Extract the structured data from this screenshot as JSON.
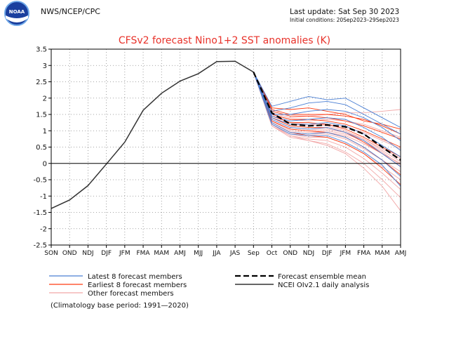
{
  "header": {
    "agency": "NWS/NCEP/CPC",
    "last_update": "Last update: Sat Sep 30 2023",
    "initial_conditions": "Initial conditions: 20Sep2023–29Sep2023",
    "logo_text": "NOAA"
  },
  "chart_data": {
    "type": "line",
    "title": "CFSv2 forecast Nino1+2 SST anomalies (K)",
    "xlabel": "",
    "ylabel": "",
    "ylim": [
      -2.5,
      3.5
    ],
    "yticks": [
      -2.5,
      -2,
      -1.5,
      -1,
      -0.5,
      0,
      0.5,
      1,
      1.5,
      2,
      2.5,
      3,
      3.5
    ],
    "ytick_labels": [
      "-2.5",
      "-2",
      "-1.5",
      "-1",
      "-0.5",
      "0",
      "0.5",
      "1",
      "1.5",
      "2",
      "2.5",
      "3",
      "3.5"
    ],
    "categories": [
      "SON",
      "OND",
      "NDJ",
      "DJF",
      "JFM",
      "FMA",
      "MAM",
      "AMJ",
      "MJJ",
      "JJA",
      "JAS",
      "Sep",
      "Oct",
      "OND",
      "NDJ",
      "DJF",
      "JFM",
      "FMA",
      "MAM",
      "AMJ"
    ],
    "grid": true,
    "observed": {
      "name": "NCEI OIv2.1 daily analysis",
      "color": "#333333",
      "values": [
        -1.38,
        -1.12,
        -0.68,
        -0.02,
        0.65,
        1.63,
        2.15,
        2.52,
        2.75,
        3.12,
        3.13,
        2.8
      ]
    },
    "ensemble_mean": {
      "name": "Forecast ensemble mean",
      "color": "#000000",
      "values": [
        2.8,
        1.55,
        1.2,
        1.15,
        1.18,
        1.12,
        0.9,
        0.5,
        0.1
      ]
    },
    "latest_members": {
      "name": "Latest 8 forecast members",
      "color": "#4a7fd4",
      "series": [
        {
          "values": [
            2.8,
            1.75,
            1.9,
            2.05,
            1.95,
            2.0,
            1.7,
            1.4,
            1.1
          ]
        },
        {
          "values": [
            2.8,
            1.6,
            1.7,
            1.85,
            1.9,
            1.8,
            1.5,
            1.2,
            0.9
          ]
        },
        {
          "values": [
            2.8,
            1.5,
            1.5,
            1.6,
            1.65,
            1.6,
            1.4,
            1.1,
            0.7
          ]
        },
        {
          "values": [
            2.8,
            1.45,
            1.3,
            1.35,
            1.4,
            1.35,
            1.1,
            0.8,
            0.4
          ]
        },
        {
          "values": [
            2.8,
            1.4,
            1.2,
            1.2,
            1.25,
            1.15,
            0.9,
            0.55,
            0.2
          ]
        },
        {
          "values": [
            2.8,
            1.35,
            1.1,
            1.05,
            1.1,
            0.95,
            0.7,
            0.3,
            -0.1
          ]
        },
        {
          "values": [
            2.8,
            1.25,
            0.95,
            0.9,
            0.95,
            0.8,
            0.5,
            0.1,
            -0.4
          ]
        },
        {
          "values": [
            2.8,
            1.2,
            0.9,
            0.85,
            0.85,
            0.65,
            0.35,
            -0.05,
            -0.7
          ]
        }
      ]
    },
    "earliest_members": {
      "name": "Earliest 8 forecast members",
      "color": "#ff3a10",
      "series": [
        {
          "values": [
            2.8,
            1.7,
            1.65,
            1.7,
            1.6,
            1.5,
            1.3,
            1.2,
            1.05
          ]
        },
        {
          "values": [
            2.8,
            1.65,
            1.5,
            1.5,
            1.5,
            1.45,
            1.35,
            1.15,
            0.9
          ]
        },
        {
          "values": [
            2.8,
            1.6,
            1.45,
            1.45,
            1.4,
            1.3,
            1.15,
            0.95,
            0.75
          ]
        },
        {
          "values": [
            2.8,
            1.5,
            1.35,
            1.35,
            1.3,
            1.2,
            1.0,
            0.75,
            0.5
          ]
        },
        {
          "values": [
            2.8,
            1.45,
            1.25,
            1.25,
            1.2,
            1.05,
            0.8,
            0.5,
            0.2
          ]
        },
        {
          "values": [
            2.8,
            1.4,
            1.15,
            1.1,
            1.1,
            0.95,
            0.65,
            0.3,
            -0.1
          ]
        },
        {
          "values": [
            2.8,
            1.3,
            1.05,
            1.0,
            0.95,
            0.8,
            0.5,
            0.1,
            -0.35
          ]
        },
        {
          "values": [
            2.8,
            1.25,
            0.95,
            0.85,
            0.8,
            0.6,
            0.3,
            -0.15,
            -0.65
          ]
        }
      ]
    },
    "other_members": {
      "name": "Other forecast members",
      "color": "#f2a8a8",
      "series": [
        {
          "values": [
            2.8,
            1.55,
            1.4,
            1.45,
            1.5,
            1.55,
            1.55,
            1.6,
            1.65
          ]
        },
        {
          "values": [
            2.8,
            1.5,
            1.35,
            1.3,
            1.35,
            1.3,
            1.2,
            1.0,
            0.8
          ]
        },
        {
          "values": [
            2.8,
            1.4,
            1.2,
            1.15,
            1.2,
            1.1,
            0.95,
            0.7,
            0.45
          ]
        },
        {
          "values": [
            2.8,
            1.35,
            1.1,
            1.05,
            1.05,
            0.95,
            0.75,
            0.45,
            0.15
          ]
        },
        {
          "values": [
            2.8,
            1.3,
            1.0,
            0.95,
            0.95,
            0.85,
            0.6,
            0.3,
            0.0
          ]
        },
        {
          "values": [
            2.8,
            1.25,
            0.95,
            0.9,
            0.9,
            0.75,
            0.45,
            0.1,
            -0.25
          ]
        },
        {
          "values": [
            2.8,
            1.2,
            0.9,
            0.8,
            0.8,
            0.6,
            0.3,
            -0.1,
            -0.5
          ]
        },
        {
          "values": [
            2.8,
            1.15,
            0.85,
            0.75,
            0.7,
            0.5,
            0.15,
            -0.3,
            -0.8
          ]
        },
        {
          "values": [
            2.8,
            1.15,
            0.8,
            0.7,
            0.6,
            0.35,
            0.0,
            -0.5,
            -1.05
          ]
        },
        {
          "values": [
            2.8,
            1.2,
            0.85,
            0.7,
            0.55,
            0.3,
            -0.15,
            -0.7,
            -1.45
          ]
        },
        {
          "values": [
            2.8,
            1.3,
            1.05,
            1.0,
            1.0,
            0.9,
            0.7,
            0.35,
            -0.05
          ]
        },
        {
          "values": [
            2.8,
            1.45,
            1.25,
            1.2,
            1.15,
            1.0,
            0.75,
            0.4,
            0.05
          ]
        }
      ]
    },
    "legend": {
      "position": "bottom",
      "entries": [
        "Latest 8 forecast members",
        "Earliest 8 forecast members",
        "Other forecast members",
        "Forecast ensemble mean",
        "NCEI OIv2.1 daily analysis"
      ],
      "note": "(Climatology base period: 1991—2020)"
    }
  }
}
